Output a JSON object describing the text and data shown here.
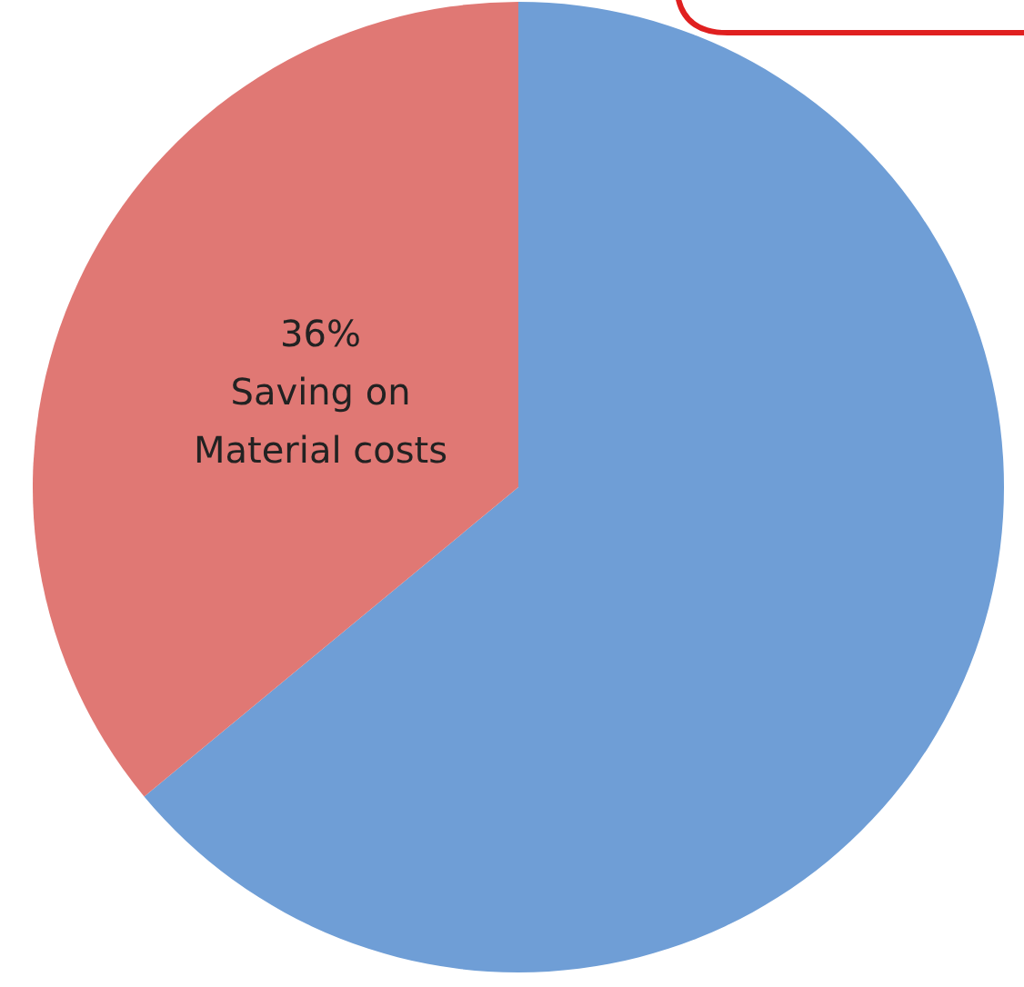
{
  "chart_data": {
    "type": "pie",
    "categories": [
      null,
      "Saving on Material costs"
    ],
    "values": [
      64,
      36
    ],
    "colors": [
      "#6f9ed6",
      "#e07874"
    ],
    "value_labels": [
      null,
      "36%"
    ]
  }
}
